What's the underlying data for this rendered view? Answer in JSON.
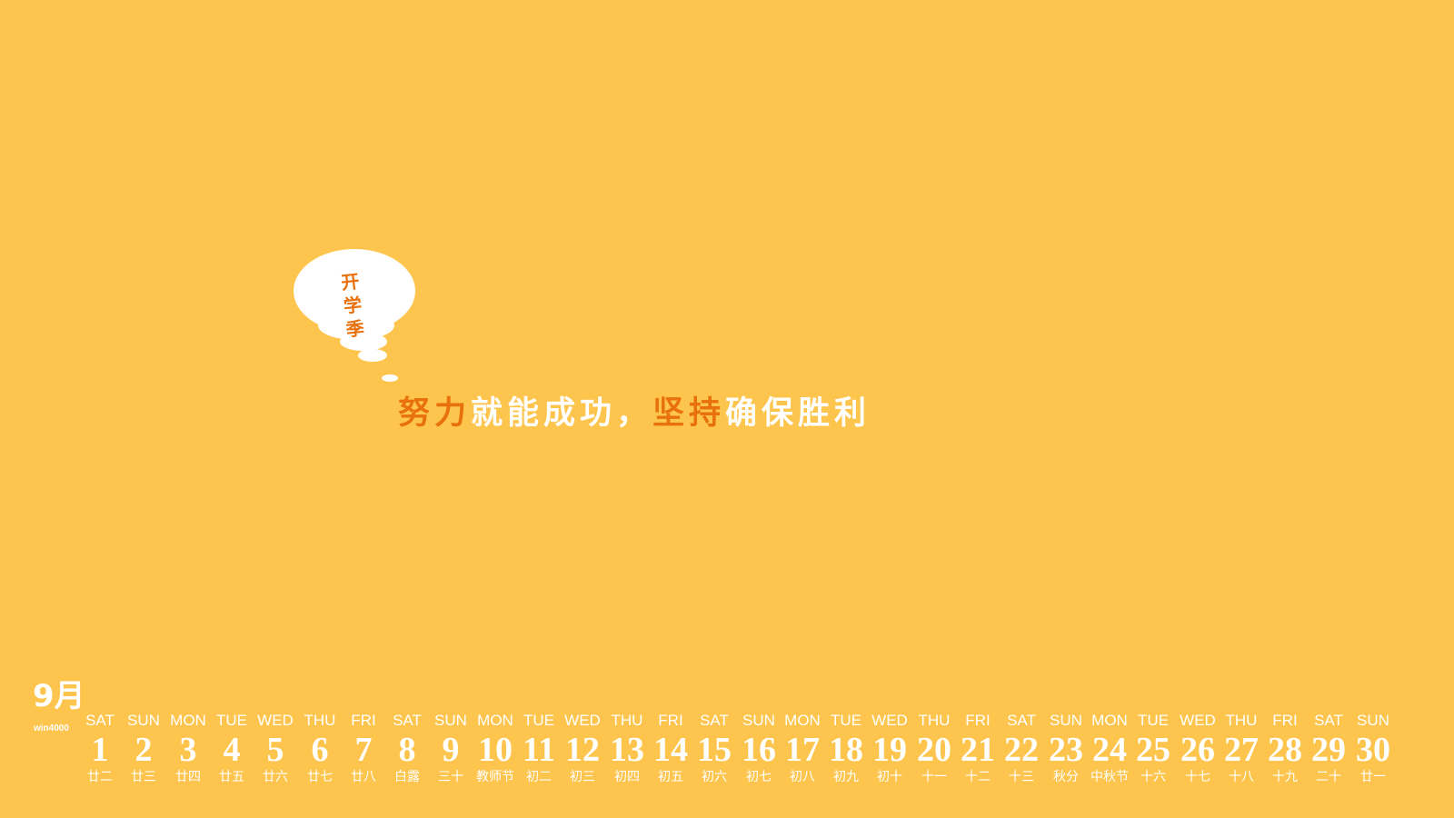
{
  "bubble": {
    "chars": [
      "开",
      "学",
      "季"
    ]
  },
  "slogan": {
    "parts": [
      {
        "text": "努力",
        "color": "orange"
      },
      {
        "text": "就能成功，",
        "color": "white"
      },
      {
        "text": "坚持",
        "color": "orange"
      },
      {
        "text": "确保胜利",
        "color": "white"
      }
    ]
  },
  "month": "9月",
  "site": "win4000",
  "colors": {
    "background": "#fdc54e",
    "accent": "#e8700d",
    "text": "#ffffff"
  },
  "days": [
    {
      "weekday": "SAT",
      "day": "1",
      "lunar": "廿二"
    },
    {
      "weekday": "SUN",
      "day": "2",
      "lunar": "廿三"
    },
    {
      "weekday": "MON",
      "day": "3",
      "lunar": "廿四"
    },
    {
      "weekday": "TUE",
      "day": "4",
      "lunar": "廿五"
    },
    {
      "weekday": "WED",
      "day": "5",
      "lunar": "廿六"
    },
    {
      "weekday": "THU",
      "day": "6",
      "lunar": "廿七"
    },
    {
      "weekday": "FRI",
      "day": "7",
      "lunar": "廿八"
    },
    {
      "weekday": "SAT",
      "day": "8",
      "lunar": "白露"
    },
    {
      "weekday": "SUN",
      "day": "9",
      "lunar": "三十"
    },
    {
      "weekday": "MON",
      "day": "10",
      "lunar": "教师节"
    },
    {
      "weekday": "TUE",
      "day": "11",
      "lunar": "初二"
    },
    {
      "weekday": "WED",
      "day": "12",
      "lunar": "初三"
    },
    {
      "weekday": "THU",
      "day": "13",
      "lunar": "初四"
    },
    {
      "weekday": "FRI",
      "day": "14",
      "lunar": "初五"
    },
    {
      "weekday": "SAT",
      "day": "15",
      "lunar": "初六"
    },
    {
      "weekday": "SUN",
      "day": "16",
      "lunar": "初七"
    },
    {
      "weekday": "MON",
      "day": "17",
      "lunar": "初八"
    },
    {
      "weekday": "TUE",
      "day": "18",
      "lunar": "初九"
    },
    {
      "weekday": "WED",
      "day": "19",
      "lunar": "初十"
    },
    {
      "weekday": "THU",
      "day": "20",
      "lunar": "十一"
    },
    {
      "weekday": "FRI",
      "day": "21",
      "lunar": "十二"
    },
    {
      "weekday": "SAT",
      "day": "22",
      "lunar": "十三"
    },
    {
      "weekday": "SUN",
      "day": "23",
      "lunar": "秋分"
    },
    {
      "weekday": "MON",
      "day": "24",
      "lunar": "中秋节"
    },
    {
      "weekday": "TUE",
      "day": "25",
      "lunar": "十六"
    },
    {
      "weekday": "WED",
      "day": "26",
      "lunar": "十七"
    },
    {
      "weekday": "THU",
      "day": "27",
      "lunar": "十八"
    },
    {
      "weekday": "FRI",
      "day": "28",
      "lunar": "十九"
    },
    {
      "weekday": "SAT",
      "day": "29",
      "lunar": "二十"
    },
    {
      "weekday": "SUN",
      "day": "30",
      "lunar": "廿一"
    }
  ]
}
